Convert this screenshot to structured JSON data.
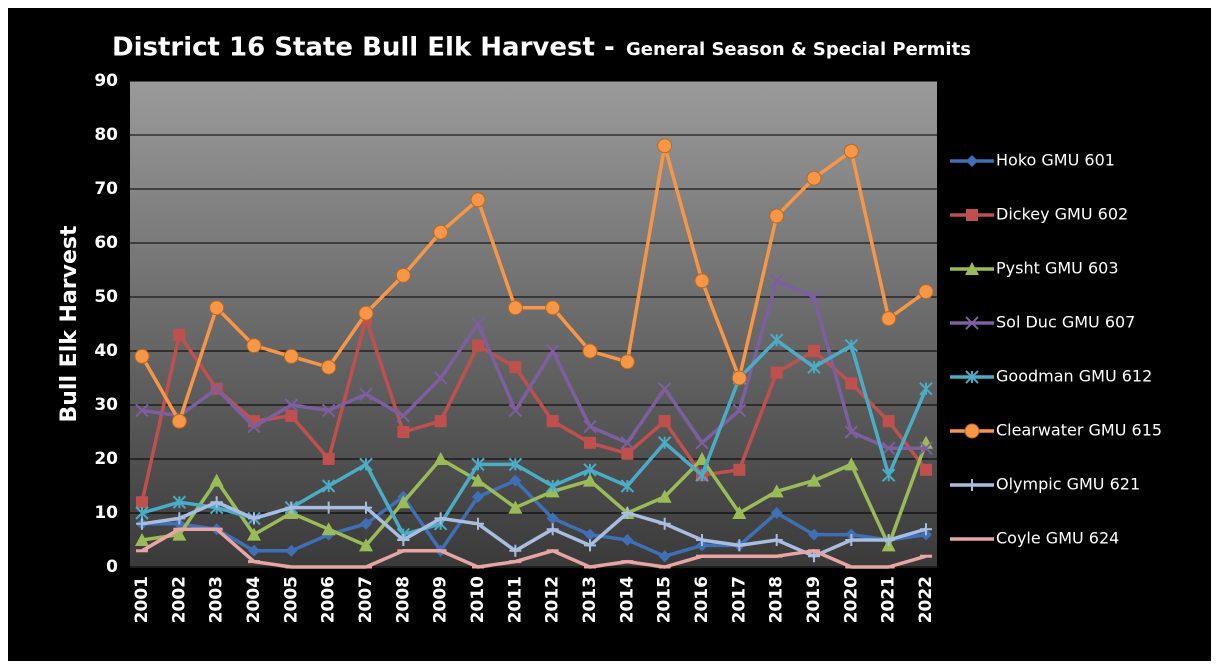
{
  "chart_data": {
    "type": "line",
    "title": "District 16 State Bull Elk Harvest -",
    "subtitle": "General Season & Special Permits",
    "y_label": "Bull Elk Harvest",
    "categories": [
      "2001",
      "2002",
      "2003",
      "2004",
      "2005",
      "2006",
      "2007",
      "2008",
      "2009",
      "2010",
      "2011",
      "2012",
      "2013",
      "2014",
      "2015",
      "2016",
      "2017",
      "2018",
      "2019",
      "2020",
      "2021",
      "2022"
    ],
    "ylim": [
      0,
      90
    ],
    "yticks": [
      0,
      10,
      20,
      30,
      40,
      50,
      60,
      70,
      80,
      90
    ],
    "legend": "right",
    "series": [
      {
        "name": "Hoko GMU 601",
        "color": "#3f6fb5",
        "marker": "diamond",
        "values": [
          8,
          8,
          7,
          3,
          3,
          6,
          8,
          13,
          3,
          13,
          16,
          9,
          6,
          5,
          2,
          4,
          4,
          10,
          6,
          6,
          5,
          6
        ]
      },
      {
        "name": "Dickey GMU 602",
        "color": "#c0504d",
        "marker": "square",
        "values": [
          12,
          43,
          33,
          27,
          28,
          20,
          46,
          25,
          27,
          41,
          37,
          27,
          23,
          21,
          27,
          17,
          18,
          36,
          40,
          34,
          27,
          18
        ]
      },
      {
        "name": "Pysht GMU 603",
        "color": "#9bbb59",
        "marker": "triangle",
        "values": [
          5,
          6,
          16,
          6,
          10,
          7,
          4,
          12,
          20,
          16,
          11,
          14,
          16,
          10,
          13,
          20,
          10,
          14,
          16,
          19,
          4,
          23
        ]
      },
      {
        "name": "Sol Duc GMU 607",
        "color": "#7d5fa0",
        "marker": "x",
        "values": [
          29,
          28,
          33,
          26,
          30,
          29,
          32,
          28,
          35,
          45,
          29,
          40,
          26,
          23,
          33,
          23,
          29,
          53,
          50,
          25,
          22,
          22
        ]
      },
      {
        "name": "Goodman GMU 612",
        "color": "#4bacc6",
        "marker": "star",
        "values": [
          10,
          12,
          11,
          9,
          11,
          15,
          19,
          6,
          8,
          19,
          19,
          15,
          18,
          15,
          23,
          17,
          35,
          42,
          37,
          41,
          17,
          33
        ]
      },
      {
        "name": "Clearwater GMU 615",
        "color": "#f79646",
        "marker": "circle",
        "values": [
          39,
          27,
          48,
          41,
          39,
          37,
          47,
          54,
          62,
          68,
          48,
          48,
          40,
          38,
          78,
          53,
          35,
          65,
          72,
          77,
          46,
          51
        ]
      },
      {
        "name": "Olympic GMU 621",
        "color": "#a9bde0",
        "marker": "plus",
        "values": [
          8,
          9,
          12,
          9,
          11,
          11,
          11,
          5,
          9,
          8,
          3,
          7,
          4,
          10,
          8,
          5,
          4,
          5,
          2,
          5,
          5,
          7
        ]
      },
      {
        "name": "Coyle GMU 624",
        "color": "#e8a5a3",
        "marker": "dash",
        "values": [
          3,
          7,
          7,
          1,
          0,
          0,
          0,
          3,
          3,
          0,
          1,
          3,
          0,
          1,
          0,
          2,
          2,
          2,
          3,
          0,
          0,
          2
        ]
      }
    ]
  }
}
